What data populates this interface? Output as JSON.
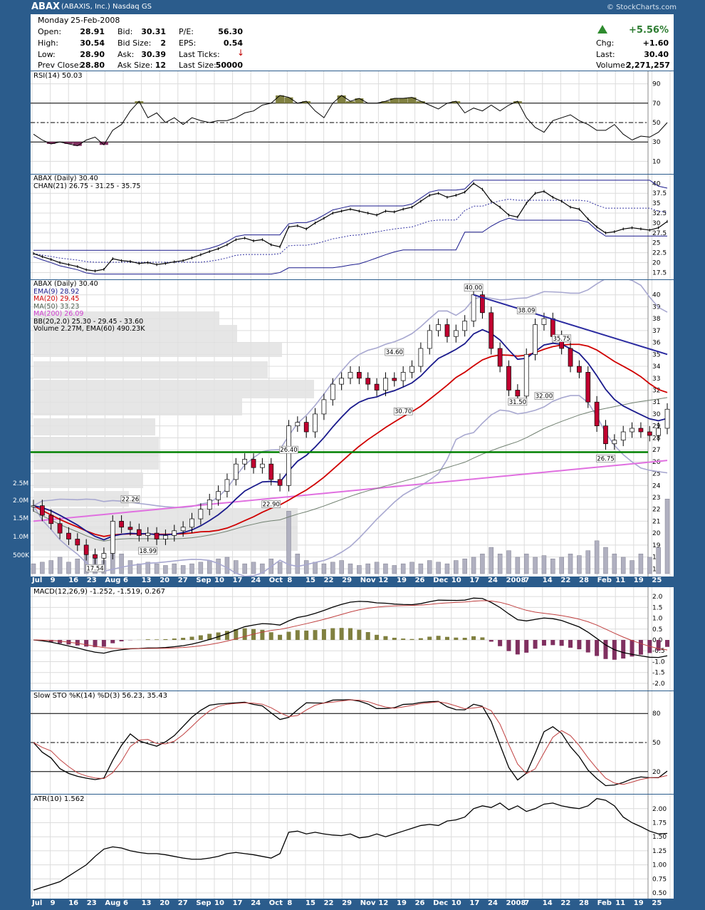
{
  "header": {
    "symbol": "ABAX",
    "company": "(ABAXIS, Inc.)",
    "exchange": "Nasdaq GS",
    "brand": "© StockCharts.com"
  },
  "quote": {
    "day": "Monday",
    "date": "25-Feb-2008",
    "labels": {
      "open": "Open:",
      "high": "High:",
      "low": "Low:",
      "prev": "Prev Close:",
      "bid": "Bid:",
      "bidsize": "Bid Size:",
      "ask": "Ask:",
      "asksize": "Ask Size:",
      "pe": "P/E:",
      "eps": "EPS:",
      "lastticks": "Last Ticks:",
      "lastsize": "Last Size:",
      "chg": "Chg:",
      "last": "Last:",
      "volume": "Volume:"
    },
    "open": "28.91",
    "high": "30.54",
    "low": "28.90",
    "prev": "28.80",
    "bid": "30.31",
    "bidsize": "2",
    "ask": "30.39",
    "asksize": "12",
    "pe": "56.30",
    "eps": "0.54",
    "lastsize": "50000",
    "pct": "+5.56%",
    "chg": "+1.60",
    "last": "30.40",
    "volume": "2,271,257"
  },
  "colors": {
    "up": "#2e7d32",
    "down": "#c00030",
    "ema9": "#1a1a8c",
    "ma20": "#d00000",
    "ma50": "#708070",
    "ma200": "#e070e0",
    "bb": "#a8a8d0",
    "support": "#008000",
    "trend": "#2a2aa0",
    "olive": "#808040",
    "purple": "#803060"
  },
  "chart_data": [
    {
      "type": "line",
      "title": "RSI(14) 50.03",
      "yticks": [
        90,
        70,
        50,
        30,
        10
      ],
      "ylim": [
        0,
        100
      ],
      "levels": [
        70,
        50,
        30
      ],
      "series": [
        {
          "values": [
            38,
            32,
            28,
            30,
            28,
            26,
            32,
            35,
            27,
            42,
            48,
            62,
            72,
            55,
            60,
            50,
            55,
            48,
            55,
            52,
            50,
            52,
            52,
            55,
            60,
            62,
            68,
            70,
            78,
            76,
            70,
            72,
            62,
            55,
            70,
            78,
            72,
            75,
            70,
            70,
            72,
            75,
            75,
            76,
            72,
            68,
            64,
            70,
            72,
            60,
            65,
            62,
            68,
            62,
            68,
            72,
            55,
            45,
            40,
            52,
            55,
            58,
            52,
            48,
            42,
            42,
            48,
            38,
            32,
            36,
            35,
            40,
            50
          ]
        }
      ]
    },
    {
      "type": "line",
      "title": "ABAX (Daily) 30.40",
      "legend": [
        "CHAN(21) 26.75 - 31.25 - 35.75"
      ],
      "yticks": [
        40.0,
        37.5,
        35.0,
        32.5,
        30.0,
        27.5,
        25.0,
        22.5,
        20.0,
        17.5
      ],
      "ylim": [
        16.5,
        41.5
      ],
      "series": [
        {
          "values": [
            22.3,
            21.5,
            20.8,
            20.0,
            19.5,
            19.0,
            18.2,
            17.9,
            18.3,
            21.0,
            20.5,
            20.3,
            19.8,
            20.0,
            19.5,
            19.8,
            20.2,
            20.5,
            21.2,
            22.0,
            22.8,
            23.5,
            24.5,
            25.8,
            26.2,
            25.5,
            25.8,
            24.5,
            24.0,
            29.0,
            29.3,
            28.5,
            30.0,
            31.2,
            32.5,
            33.0,
            33.5,
            33.0,
            32.5,
            32.0,
            33.0,
            32.8,
            33.5,
            34.0,
            35.5,
            37.0,
            37.5,
            36.5,
            37.0,
            37.8,
            40.0,
            38.5,
            35.5,
            34.0,
            32.0,
            31.5,
            35.0,
            37.5,
            38.0,
            36.5,
            35.5,
            34.0,
            33.5,
            31.0,
            29.0,
            27.5,
            27.8,
            28.5,
            28.8,
            28.5,
            28.2,
            28.8,
            30.4
          ]
        }
      ]
    },
    {
      "type": "candlestick",
      "title": "ABAX (Daily) 30.40",
      "legend": [
        "EMA(9) 28.92",
        "MA(20) 29.45",
        "MA(50) 33.23",
        "MA(200) 26.09",
        "BB(20,2.0) 25.30 - 29.45 - 33.60",
        "Volume 2.27M, EMA(60) 490.23K"
      ],
      "yticks": [
        40,
        39,
        38,
        37,
        36,
        35,
        34,
        33,
        32,
        31,
        30,
        29,
        28,
        27,
        26,
        25,
        24,
        23,
        22,
        21,
        20,
        19,
        18,
        17
      ],
      "ylim": [
        16.6,
        41.0
      ],
      "volume_ticks": [
        "2.5M",
        "2.0M",
        "1.5M",
        "1.0M",
        "500K"
      ],
      "annotations": [
        "40.00",
        "38.09",
        "35.75",
        "34.60",
        "32.00",
        "31.50",
        "30.70",
        "26.75",
        "26.40",
        "22.90",
        "22.26",
        "18.99",
        "17.54"
      ],
      "support": 26.8,
      "trendline": [
        [
          50,
          40.0
        ],
        [
          72,
          35.0
        ]
      ],
      "close": [
        22.3,
        21.5,
        20.8,
        20.0,
        19.5,
        19.0,
        18.2,
        17.9,
        18.3,
        21.0,
        20.5,
        20.3,
        19.8,
        20.0,
        19.5,
        19.8,
        20.2,
        20.5,
        21.2,
        22.0,
        22.8,
        23.5,
        24.5,
        25.8,
        26.2,
        25.5,
        25.8,
        24.5,
        24.0,
        29.0,
        29.3,
        28.5,
        30.0,
        31.2,
        32.5,
        33.0,
        33.5,
        33.0,
        32.5,
        32.0,
        33.0,
        32.8,
        33.5,
        34.0,
        35.5,
        37.0,
        37.5,
        36.5,
        37.0,
        37.8,
        40.0,
        38.5,
        35.5,
        34.0,
        32.0,
        31.5,
        35.0,
        37.5,
        38.0,
        36.5,
        35.5,
        34.0,
        33.5,
        31.0,
        29.0,
        27.5,
        27.8,
        28.5,
        28.8,
        28.5,
        28.2,
        28.8,
        30.4
      ],
      "volume": [
        0.3,
        0.35,
        0.4,
        0.5,
        0.35,
        0.45,
        0.6,
        0.5,
        0.4,
        0.9,
        0.6,
        0.4,
        0.3,
        0.35,
        0.3,
        0.25,
        0.3,
        0.25,
        0.3,
        0.35,
        0.4,
        0.45,
        0.5,
        0.4,
        0.3,
        0.35,
        0.3,
        0.45,
        0.35,
        1.9,
        0.6,
        0.4,
        0.35,
        0.3,
        0.35,
        0.4,
        0.3,
        0.25,
        0.3,
        0.35,
        0.3,
        0.25,
        0.3,
        0.35,
        0.3,
        0.4,
        0.35,
        0.3,
        0.4,
        0.45,
        0.5,
        0.6,
        0.8,
        0.6,
        0.7,
        0.5,
        0.6,
        0.5,
        0.55,
        0.45,
        0.5,
        0.6,
        0.55,
        0.7,
        1.0,
        0.8,
        0.6,
        0.5,
        0.4,
        0.6,
        0.5,
        0.8,
        2.27
      ]
    },
    {
      "type": "line",
      "title": "MACD(12,26,9) -1.252, -1.519, 0.267",
      "yticks": [
        "2.0",
        "1.5",
        "1.0",
        "0.5",
        "0.0",
        "-0.5",
        "-1.0",
        "-1.5",
        "-2.0"
      ],
      "ylim": [
        -2.2,
        2.3
      ]
    },
    {
      "type": "line",
      "title": "Slow STO %K(14) %D(3) 56.23, 35.43",
      "yticks": [
        80,
        50,
        20
      ],
      "ylim": [
        0,
        100
      ],
      "levels": [
        80,
        50,
        20
      ]
    },
    {
      "type": "line",
      "title": "ATR(10) 1.562",
      "yticks": [
        "2.00",
        "1.75",
        "1.50",
        "1.25",
        "1.00",
        "0.75",
        "0.50"
      ],
      "ylim": [
        0.45,
        2.2
      ],
      "series": [
        {
          "values": [
            0.55,
            0.6,
            0.65,
            0.7,
            0.8,
            0.9,
            1.0,
            1.15,
            1.28,
            1.32,
            1.3,
            1.25,
            1.22,
            1.2,
            1.2,
            1.18,
            1.15,
            1.12,
            1.1,
            1.1,
            1.12,
            1.15,
            1.2,
            1.22,
            1.2,
            1.18,
            1.15,
            1.12,
            1.2,
            1.58,
            1.6,
            1.55,
            1.58,
            1.55,
            1.53,
            1.52,
            1.55,
            1.48,
            1.5,
            1.55,
            1.5,
            1.55,
            1.6,
            1.65,
            1.7,
            1.72,
            1.7,
            1.78,
            1.8,
            1.85,
            2.0,
            2.05,
            2.02,
            2.1,
            1.98,
            2.05,
            1.95,
            2.0,
            2.08,
            2.1,
            2.05,
            2.02,
            2.0,
            2.05,
            2.18,
            2.15,
            2.05,
            1.85,
            1.75,
            1.68,
            1.6,
            1.55,
            1.56
          ]
        }
      ]
    }
  ],
  "x_labels": [
    "Jul",
    "9",
    "16",
    "23",
    "Aug",
    "6",
    "13",
    "20",
    "27",
    "Sep",
    "10",
    "17",
    "24",
    "Oct",
    "8",
    "15",
    "22",
    "29",
    "Nov",
    "12",
    "19",
    "26",
    "Dec",
    "10",
    "17",
    "24",
    "2008",
    "7",
    "14",
    "22",
    "28",
    "Feb",
    "11",
    "19",
    "25"
  ]
}
